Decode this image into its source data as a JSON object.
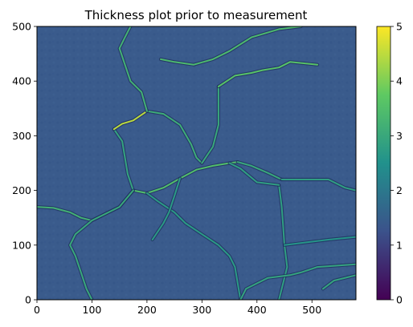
{
  "chart_data": {
    "type": "heatmap",
    "title": "Thickness plot prior to measurement",
    "xlabel": "",
    "ylabel": "",
    "xlim": [
      0,
      580
    ],
    "ylim": [
      0,
      500
    ],
    "x_ticks": [
      0,
      100,
      200,
      300,
      400,
      500
    ],
    "y_ticks": [
      0,
      100,
      200,
      300,
      400,
      500
    ],
    "colorbar": {
      "colormap": "viridis",
      "range": [
        0,
        5
      ],
      "ticks": [
        0,
        1,
        2,
        3,
        4,
        5
      ]
    },
    "background_value": 1.4,
    "colors": {
      "field": "#3a5b8c",
      "viridis": [
        "#440154",
        "#3b528b",
        "#21918c",
        "#5ec962",
        "#fde725"
      ]
    },
    "ridges": [
      {
        "value": 3.2,
        "points": [
          [
            0,
            170
          ],
          [
            30,
            168
          ],
          [
            60,
            160
          ],
          [
            80,
            150
          ],
          [
            100,
            145
          ],
          [
            120,
            155
          ],
          [
            150,
            170
          ],
          [
            175,
            200
          ]
        ]
      },
      {
        "value": 3.5,
        "points": [
          [
            175,
            200
          ],
          [
            200,
            195
          ],
          [
            230,
            205
          ],
          [
            260,
            222
          ],
          [
            290,
            238
          ],
          [
            320,
            245
          ],
          [
            350,
            250
          ],
          [
            365,
            252
          ]
        ]
      },
      {
        "value": 3.0,
        "points": [
          [
            365,
            252
          ],
          [
            390,
            245
          ],
          [
            420,
            232
          ],
          [
            445,
            220
          ]
        ]
      },
      {
        "value": 2.9,
        "points": [
          [
            175,
            200
          ],
          [
            165,
            230
          ],
          [
            160,
            260
          ],
          [
            155,
            290
          ],
          [
            140,
            312
          ]
        ]
      },
      {
        "value": 4.5,
        "points": [
          [
            140,
            312
          ],
          [
            155,
            322
          ],
          [
            175,
            328
          ],
          [
            200,
            345
          ]
        ]
      },
      {
        "value": 3.1,
        "points": [
          [
            200,
            345
          ],
          [
            230,
            340
          ],
          [
            260,
            320
          ],
          [
            280,
            285
          ],
          [
            290,
            260
          ],
          [
            300,
            250
          ]
        ]
      },
      {
        "value": 3.0,
        "points": [
          [
            300,
            250
          ],
          [
            320,
            280
          ],
          [
            330,
            320
          ],
          [
            330,
            370
          ],
          [
            330,
            390
          ]
        ]
      },
      {
        "value": 3.6,
        "points": [
          [
            330,
            390
          ],
          [
            360,
            410
          ],
          [
            390,
            415
          ],
          [
            410,
            420
          ],
          [
            440,
            425
          ],
          [
            460,
            435
          ],
          [
            510,
            430
          ]
        ]
      },
      {
        "value": 3.2,
        "points": [
          [
            200,
            345
          ],
          [
            190,
            380
          ],
          [
            170,
            400
          ],
          [
            160,
            430
          ],
          [
            150,
            460
          ],
          [
            160,
            480
          ],
          [
            170,
            500
          ]
        ]
      },
      {
        "value": 3.4,
        "points": [
          [
            225,
            440
          ],
          [
            250,
            435
          ],
          [
            285,
            430
          ],
          [
            320,
            440
          ],
          [
            350,
            455
          ],
          [
            390,
            480
          ],
          [
            440,
            495
          ],
          [
            480,
            500
          ]
        ]
      },
      {
        "value": 3.0,
        "points": [
          [
            175,
            200
          ],
          [
            150,
            170
          ],
          [
            100,
            145
          ],
          [
            70,
            120
          ],
          [
            60,
            100
          ],
          [
            70,
            80
          ],
          [
            80,
            50
          ],
          [
            90,
            20
          ],
          [
            100,
            0
          ]
        ]
      },
      {
        "value": 2.8,
        "points": [
          [
            440,
            210
          ],
          [
            445,
            170
          ],
          [
            448,
            130
          ],
          [
            450,
            100
          ],
          [
            455,
            60
          ],
          [
            445,
            20
          ],
          [
            440,
            0
          ]
        ]
      },
      {
        "value": 2.8,
        "points": [
          [
            440,
            210
          ],
          [
            400,
            215
          ],
          [
            370,
            240
          ],
          [
            350,
            250
          ]
        ]
      },
      {
        "value": 2.7,
        "points": [
          [
            200,
            195
          ],
          [
            220,
            180
          ],
          [
            250,
            160
          ],
          [
            270,
            140
          ],
          [
            300,
            120
          ],
          [
            330,
            100
          ],
          [
            350,
            80
          ],
          [
            360,
            60
          ],
          [
            370,
            0
          ]
        ]
      },
      {
        "value": 2.9,
        "points": [
          [
            370,
            0
          ],
          [
            380,
            20
          ],
          [
            400,
            30
          ],
          [
            420,
            40
          ],
          [
            460,
            45
          ],
          [
            480,
            50
          ],
          [
            510,
            60
          ],
          [
            580,
            65
          ]
        ]
      },
      {
        "value": 2.9,
        "points": [
          [
            520,
            20
          ],
          [
            540,
            35
          ],
          [
            580,
            45
          ]
        ]
      },
      {
        "value": 2.7,
        "points": [
          [
            260,
            222
          ],
          [
            250,
            190
          ],
          [
            240,
            160
          ],
          [
            230,
            140
          ],
          [
            210,
            110
          ]
        ]
      },
      {
        "value": 2.6,
        "points": [
          [
            450,
            100
          ],
          [
            490,
            105
          ],
          [
            530,
            110
          ],
          [
            580,
            115
          ]
        ]
      },
      {
        "value": 2.8,
        "points": [
          [
            445,
            220
          ],
          [
            480,
            220
          ],
          [
            530,
            220
          ],
          [
            560,
            205
          ],
          [
            580,
            200
          ]
        ]
      }
    ]
  }
}
